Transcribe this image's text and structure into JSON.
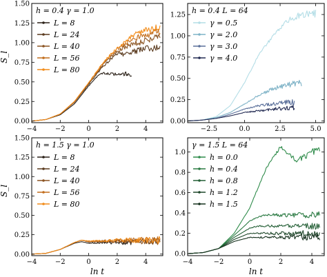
{
  "chart_data": [
    {
      "type": "line",
      "title": "h = 0.4   γ = 1.0",
      "xlabel": "",
      "ylabel": "S_l",
      "xlim": [
        -4,
        5.2
      ],
      "ylim": [
        -0.02,
        1.5
      ],
      "xticks": [
        -4,
        -2,
        0,
        2,
        4
      ],
      "yticks": [
        0.0,
        0.25,
        0.5,
        0.75,
        1.0,
        1.25,
        1.5
      ],
      "ytick_labels": [
        "0.00",
        "0.25",
        "0.50",
        "0.75",
        "1.00",
        "1.25",
        "1.50"
      ],
      "legend_position": "top-left",
      "series": [
        {
          "name": "L = 8",
          "color": "#2b2118",
          "x": [
            -4,
            -3,
            -2,
            -1,
            0,
            0.5,
            1,
            1.5,
            2,
            2.5,
            3
          ],
          "y": [
            0.0,
            0.02,
            0.08,
            0.22,
            0.45,
            0.55,
            0.62,
            0.6,
            0.6,
            0.6,
            0.6
          ]
        },
        {
          "name": "L = 24",
          "color": "#5a3a1e",
          "x": [
            -4,
            -3,
            -2,
            -1,
            0,
            1,
            2,
            2.5,
            3,
            3.5,
            4,
            4.5,
            5
          ],
          "y": [
            0.0,
            0.02,
            0.09,
            0.24,
            0.47,
            0.7,
            0.86,
            0.85,
            0.88,
            0.9,
            0.92,
            0.93,
            0.94
          ]
        },
        {
          "name": "L = 40",
          "color": "#8b5422",
          "x": [
            -4,
            -3,
            -2,
            -1,
            0,
            1,
            2,
            3,
            3.5,
            4,
            4.5,
            5
          ],
          "y": [
            0.0,
            0.02,
            0.09,
            0.24,
            0.48,
            0.72,
            0.9,
            0.98,
            1.0,
            1.02,
            1.05,
            1.06
          ]
        },
        {
          "name": "L = 56",
          "color": "#c26d1c",
          "x": [
            -4,
            -3,
            -2,
            -1,
            0,
            1,
            2,
            3,
            4,
            4.5,
            5
          ],
          "y": [
            0.0,
            0.02,
            0.09,
            0.25,
            0.49,
            0.73,
            0.92,
            1.04,
            1.1,
            1.12,
            1.14
          ]
        },
        {
          "name": "L = 80",
          "color": "#f28c1a",
          "x": [
            -4,
            -3,
            -2,
            -1,
            0,
            1,
            2,
            3,
            4,
            4.5,
            5
          ],
          "y": [
            0.0,
            0.02,
            0.09,
            0.25,
            0.49,
            0.74,
            0.94,
            1.08,
            1.16,
            1.18,
            1.2
          ]
        }
      ]
    },
    {
      "type": "line",
      "title": "h = 0.4   L = 64",
      "xlabel": "",
      "ylabel": "",
      "xlim": [
        -4,
        5.6
      ],
      "ylim": [
        -0.02,
        1.38
      ],
      "xticks": [
        -2.5,
        0.0,
        2.5,
        5.0
      ],
      "xtick_labels": [
        "−2.5",
        "0.0",
        "2.5",
        "5.0"
      ],
      "yticks": [
        0.0,
        0.25,
        0.5,
        0.75,
        1.0,
        1.25
      ],
      "ytick_labels": [
        "0.00",
        "0.25",
        "0.50",
        "0.75",
        "1.00",
        "1.25"
      ],
      "legend_position": "top-left",
      "series": [
        {
          "name": "γ = 0.5",
          "color": "#b3dde6",
          "x": [
            -4,
            -3,
            -2,
            -1,
            0,
            1,
            2,
            3,
            4,
            5
          ],
          "y": [
            0.0,
            0.01,
            0.05,
            0.18,
            0.45,
            0.78,
            1.0,
            1.18,
            1.25,
            1.26
          ]
        },
        {
          "name": "γ = 2.0",
          "color": "#7fb3c7",
          "x": [
            -4,
            -3,
            -2,
            -1,
            0,
            1,
            2,
            2.5,
            3,
            3.5,
            4
          ],
          "y": [
            0.0,
            0.01,
            0.04,
            0.1,
            0.2,
            0.3,
            0.38,
            0.4,
            0.42,
            0.44,
            0.45
          ]
        },
        {
          "name": "γ = 3.0",
          "color": "#5a6f9a",
          "x": [
            -4,
            -3,
            -2,
            -1,
            0,
            1,
            2,
            3,
            3.5
          ],
          "y": [
            0.0,
            0.01,
            0.03,
            0.08,
            0.14,
            0.18,
            0.2,
            0.22,
            0.22
          ]
        },
        {
          "name": "γ = 4.0",
          "color": "#222a52",
          "x": [
            -4,
            -3,
            -2,
            -1,
            0,
            1,
            2,
            3,
            3.5
          ],
          "y": [
            0.0,
            0.01,
            0.03,
            0.06,
            0.1,
            0.12,
            0.14,
            0.15,
            0.16
          ]
        }
      ]
    },
    {
      "type": "line",
      "title": "h = 1.5   γ = 1.0",
      "xlabel": "ln t",
      "ylabel": "S_l",
      "xlim": [
        -4,
        5.2
      ],
      "ylim": [
        -0.02,
        1.5
      ],
      "xticks": [
        -4,
        -2,
        0,
        2,
        4
      ],
      "yticks": [
        0.0,
        0.25,
        0.5,
        0.75,
        1.0,
        1.25,
        1.5
      ],
      "ytick_labels": [
        "0.00",
        "0.25",
        "0.50",
        "0.75",
        "1.00",
        "1.25",
        "1.50"
      ],
      "legend_position": "top-left",
      "series": [
        {
          "name": "L = 8",
          "color": "#2b2118",
          "x": [
            -4,
            -3,
            -2,
            -1,
            -0.5,
            0,
            1,
            2,
            3
          ],
          "y": [
            0.0,
            0.01,
            0.06,
            0.14,
            0.16,
            0.14,
            0.15,
            0.15,
            0.15
          ]
        },
        {
          "name": "L = 24",
          "color": "#5a3a1e",
          "x": [
            -4,
            -3,
            -2,
            -1,
            -0.5,
            0,
            1,
            2,
            3,
            4,
            5
          ],
          "y": [
            0.0,
            0.01,
            0.06,
            0.15,
            0.18,
            0.16,
            0.16,
            0.17,
            0.17,
            0.17,
            0.17
          ]
        },
        {
          "name": "L = 40",
          "color": "#8b5422",
          "x": [
            -4,
            -3,
            -2,
            -1,
            -0.5,
            0,
            1,
            2,
            3,
            4,
            5
          ],
          "y": [
            0.0,
            0.01,
            0.06,
            0.15,
            0.18,
            0.16,
            0.17,
            0.17,
            0.17,
            0.17,
            0.17
          ]
        },
        {
          "name": "L = 56",
          "color": "#c26d1c",
          "x": [
            -4,
            -3,
            -2,
            -1,
            -0.5,
            0,
            1,
            2,
            3,
            4,
            5
          ],
          "y": [
            0.0,
            0.01,
            0.06,
            0.15,
            0.18,
            0.16,
            0.17,
            0.17,
            0.18,
            0.18,
            0.18
          ]
        },
        {
          "name": "L = 80",
          "color": "#f28c1a",
          "x": [
            -4,
            -3,
            -2,
            -1,
            -0.5,
            0,
            1,
            2,
            3,
            4,
            5
          ],
          "y": [
            0.0,
            0.01,
            0.06,
            0.15,
            0.18,
            0.17,
            0.17,
            0.18,
            0.18,
            0.18,
            0.18
          ]
        }
      ]
    },
    {
      "type": "line",
      "title": "γ = 1.5   L = 64",
      "xlabel": "ln t",
      "ylabel": "",
      "xlim": [
        -4,
        4.8
      ],
      "ylim": [
        -0.02,
        1.14
      ],
      "xticks": [
        -4,
        -2,
        0,
        2,
        4
      ],
      "yticks": [
        0.0,
        0.2,
        0.4,
        0.6,
        0.8,
        1.0
      ],
      "ytick_labels": [
        "0.0",
        "0.2",
        "0.4",
        "0.6",
        "0.8",
        "1.0"
      ],
      "legend_position": "top-left",
      "series": [
        {
          "name": "h = 0.0",
          "color": "#2e8b4a",
          "x": [
            -4,
            -3,
            -2,
            -1,
            0,
            1,
            1.5,
            2,
            2.5,
            3,
            3.5,
            4,
            4.5
          ],
          "y": [
            0.0,
            0.01,
            0.05,
            0.2,
            0.45,
            0.82,
            0.95,
            1.05,
            0.98,
            0.92,
            0.95,
            1.0,
            1.02
          ]
        },
        {
          "name": "h = 0.4",
          "color": "#2a7a42",
          "x": [
            -4,
            -3,
            -2,
            -1,
            0,
            0.5,
            1,
            2,
            3,
            4,
            4.5
          ],
          "y": [
            0.0,
            0.01,
            0.05,
            0.18,
            0.32,
            0.36,
            0.38,
            0.38,
            0.38,
            0.38,
            0.38
          ]
        },
        {
          "name": "h = 0.8",
          "color": "#245f36",
          "x": [
            -4,
            -3,
            -2,
            -1,
            0,
            0.5,
            1,
            2,
            3,
            4,
            4.5
          ],
          "y": [
            0.0,
            0.01,
            0.05,
            0.16,
            0.25,
            0.27,
            0.27,
            0.27,
            0.27,
            0.27,
            0.27
          ]
        },
        {
          "name": "h = 1.2",
          "color": "#1d4629",
          "x": [
            -4,
            -3,
            -2,
            -1,
            0,
            0.5,
            1,
            2,
            3,
            4,
            4.5
          ],
          "y": [
            0.0,
            0.01,
            0.05,
            0.14,
            0.2,
            0.2,
            0.2,
            0.2,
            0.2,
            0.2,
            0.2
          ]
        },
        {
          "name": "h = 1.5",
          "color": "#15301d",
          "x": [
            -4,
            -3,
            -2,
            -1,
            0,
            0.5,
            1,
            2,
            3,
            4,
            4.5
          ],
          "y": [
            0.0,
            0.01,
            0.05,
            0.12,
            0.16,
            0.16,
            0.16,
            0.16,
            0.16,
            0.16,
            0.16
          ]
        }
      ]
    }
  ]
}
